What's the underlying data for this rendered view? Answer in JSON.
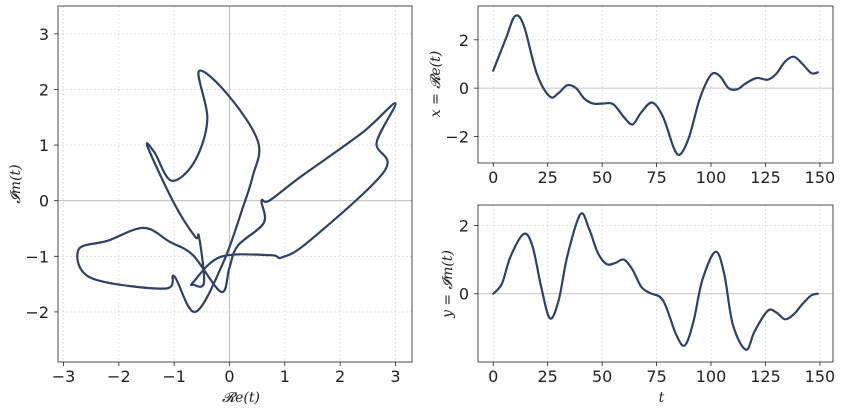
{
  "colors": {
    "line": "#2e4166",
    "frame": "#222222",
    "grid": "#cfcfcf"
  },
  "chart_data": [
    {
      "type": "line",
      "name": "complex-plane",
      "xlabel": "𝓡e(t)",
      "ylabel": "𝓘m(t)",
      "xlim": [
        -3.1,
        3.3
      ],
      "ylim": [
        -2.9,
        3.5
      ],
      "xticks": [
        -3,
        -2,
        -1,
        0,
        1,
        2,
        3
      ],
      "yticks": [
        -2,
        -1,
        0,
        1,
        2,
        3
      ],
      "grid": true,
      "zero_lines": true,
      "series": [
        {
          "x": [
            0.72,
            1.3,
            2.4,
            3.0,
            2.66,
            2.8,
            1.45,
            0.95,
            0.75,
            -0.16,
            -0.65,
            -0.65,
            -0.46,
            -0.55,
            -0.62,
            -1.0,
            -1.48,
            -1.35,
            -1.05,
            -0.64,
            -0.4,
            -0.55,
            0.0,
            0.52,
            0.42,
            0.24,
            -0.12,
            -0.62,
            -1.0,
            -1.17,
            -2.5,
            -2.73,
            -2.2,
            -1.55,
            -1.08,
            -0.66,
            -0.15,
            0.0,
            0.15,
            0.62,
            0.58
          ],
          "y": [
            0.0,
            0.44,
            1.22,
            1.75,
            1.04,
            0.53,
            -0.72,
            -1.02,
            -0.98,
            -1.01,
            -1.46,
            -1.51,
            -1.47,
            -0.65,
            -0.65,
            -0.05,
            0.97,
            0.86,
            0.36,
            0.69,
            1.45,
            2.33,
            1.87,
            1.05,
            0.44,
            -0.13,
            -1.13,
            -2.0,
            -1.36,
            -1.58,
            -1.39,
            -0.88,
            -0.72,
            -0.49,
            -0.74,
            -0.98,
            -1.64,
            -1.2,
            -0.81,
            -0.4,
            0.0
          ]
        }
      ]
    },
    {
      "type": "line",
      "name": "x-series",
      "ylabel": "x = 𝓡e(t)",
      "xlim": [
        -7,
        156
      ],
      "ylim": [
        -3.1,
        3.4
      ],
      "xticks": [
        0,
        25,
        50,
        75,
        100,
        125,
        150
      ],
      "yticks": [
        -2,
        0,
        2
      ],
      "grid": true,
      "zero_lines": true,
      "series": [
        {
          "x": [
            0,
            6,
            10,
            14,
            20,
            26,
            30,
            34,
            38,
            42,
            46,
            50,
            55,
            60,
            64,
            68,
            73,
            78,
            83,
            86,
            90,
            95,
            100,
            104,
            108,
            112,
            116,
            121,
            126,
            130,
            134,
            138,
            142,
            146,
            149
          ],
          "y": [
            0.72,
            2.1,
            2.98,
            2.6,
            0.6,
            -0.35,
            -0.2,
            0.12,
            0.0,
            -0.45,
            -0.64,
            -0.64,
            -0.66,
            -1.2,
            -1.5,
            -1.0,
            -0.6,
            -1.2,
            -2.5,
            -2.73,
            -2.0,
            -0.4,
            0.55,
            0.5,
            0.0,
            -0.05,
            0.2,
            0.42,
            0.35,
            0.6,
            1.1,
            1.3,
            1.0,
            0.62,
            0.65
          ]
        }
      ]
    },
    {
      "type": "line",
      "name": "y-series",
      "xlabel": "t",
      "ylabel": "y = 𝓘m(t)",
      "xlim": [
        -7,
        156
      ],
      "ylim": [
        -2.0,
        2.6
      ],
      "xticks": [
        0,
        25,
        50,
        75,
        100,
        125,
        150
      ],
      "yticks": [
        0,
        2
      ],
      "grid": true,
      "zero_lines": true,
      "series": [
        {
          "x": [
            0,
            4,
            8,
            14,
            18,
            22,
            26,
            30,
            34,
            40,
            44,
            48,
            52,
            56,
            60,
            64,
            68,
            72,
            78,
            84,
            88,
            92,
            96,
            102,
            106,
            110,
            116,
            120,
            126,
            130,
            134,
            138,
            142,
            146,
            149
          ],
          "y": [
            0.0,
            0.3,
            1.1,
            1.75,
            1.4,
            0.2,
            -0.72,
            -0.2,
            1.1,
            2.33,
            1.9,
            1.2,
            0.87,
            0.9,
            1.0,
            0.7,
            0.2,
            0.02,
            -0.2,
            -1.2,
            -1.51,
            -0.8,
            0.4,
            1.23,
            0.6,
            -0.9,
            -1.64,
            -1.1,
            -0.5,
            -0.55,
            -0.75,
            -0.6,
            -0.3,
            -0.05,
            0.0
          ]
        }
      ]
    }
  ]
}
